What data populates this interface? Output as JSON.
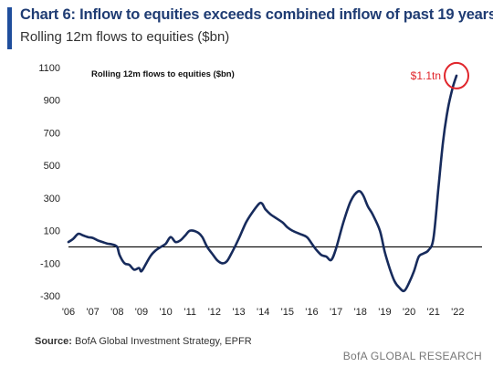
{
  "header": {
    "title": "Chart 6: Inflow to equities exceeds combined inflow of past 19 years",
    "subtitle": "Rolling 12m flows to equities ($bn)"
  },
  "footer": {
    "source_label": "Source:",
    "source_text": "BofA Global Investment Strategy, EPFR",
    "brand": "BofA GLOBAL RESEARCH"
  },
  "colors": {
    "line": "#172b5c",
    "accent": "#1f4e9c",
    "annotation": "#e0252b"
  },
  "chart_data": {
    "type": "line",
    "title": "Rolling 12m flows to equities ($bn)",
    "xlabel": "",
    "ylabel": "",
    "xlim": [
      2006.0,
      2023.0
    ],
    "ylim": [
      -300,
      1100
    ],
    "x_ticks": [
      "'06",
      "'07",
      "'08",
      "'09",
      "'10",
      "'11",
      "'12",
      "'13",
      "'14",
      "'15",
      "'16",
      "'17",
      "'18",
      "'19",
      "'20",
      "'21",
      "'22"
    ],
    "y_ticks": [
      1100,
      900,
      700,
      500,
      300,
      100,
      -100,
      -300
    ],
    "zero_line": 0,
    "grid": false,
    "annotation": {
      "text": "$1.1tn",
      "x": 2021.95,
      "y": 1050
    },
    "series": [
      {
        "values": [
          [
            2006.0,
            30
          ],
          [
            2006.2,
            50
          ],
          [
            2006.4,
            80
          ],
          [
            2006.6,
            70
          ],
          [
            2006.8,
            60
          ],
          [
            2007.0,
            55
          ],
          [
            2007.2,
            40
          ],
          [
            2007.4,
            30
          ],
          [
            2007.6,
            20
          ],
          [
            2007.8,
            15
          ],
          [
            2008.0,
            0
          ],
          [
            2008.1,
            -50
          ],
          [
            2008.3,
            -100
          ],
          [
            2008.5,
            -110
          ],
          [
            2008.7,
            -140
          ],
          [
            2008.9,
            -130
          ],
          [
            2009.0,
            -150
          ],
          [
            2009.2,
            -100
          ],
          [
            2009.4,
            -50
          ],
          [
            2009.6,
            -20
          ],
          [
            2009.8,
            0
          ],
          [
            2010.0,
            20
          ],
          [
            2010.2,
            60
          ],
          [
            2010.4,
            30
          ],
          [
            2010.6,
            40
          ],
          [
            2010.8,
            70
          ],
          [
            2011.0,
            100
          ],
          [
            2011.3,
            90
          ],
          [
            2011.5,
            60
          ],
          [
            2011.7,
            0
          ],
          [
            2011.9,
            -40
          ],
          [
            2012.1,
            -80
          ],
          [
            2012.3,
            -100
          ],
          [
            2012.5,
            -90
          ],
          [
            2012.7,
            -40
          ],
          [
            2013.0,
            50
          ],
          [
            2013.3,
            150
          ],
          [
            2013.6,
            220
          ],
          [
            2013.9,
            270
          ],
          [
            2014.1,
            230
          ],
          [
            2014.3,
            200
          ],
          [
            2014.5,
            180
          ],
          [
            2014.8,
            150
          ],
          [
            2015.0,
            120
          ],
          [
            2015.2,
            100
          ],
          [
            2015.5,
            80
          ],
          [
            2015.8,
            60
          ],
          [
            2016.0,
            20
          ],
          [
            2016.2,
            -20
          ],
          [
            2016.4,
            -50
          ],
          [
            2016.6,
            -60
          ],
          [
            2016.8,
            -80
          ],
          [
            2017.0,
            -10
          ],
          [
            2017.3,
            150
          ],
          [
            2017.6,
            280
          ],
          [
            2017.9,
            340
          ],
          [
            2018.1,
            320
          ],
          [
            2018.3,
            250
          ],
          [
            2018.5,
            200
          ],
          [
            2018.8,
            100
          ],
          [
            2019.0,
            -30
          ],
          [
            2019.2,
            -130
          ],
          [
            2019.4,
            -210
          ],
          [
            2019.6,
            -250
          ],
          [
            2019.8,
            -270
          ],
          [
            2020.0,
            -220
          ],
          [
            2020.2,
            -150
          ],
          [
            2020.4,
            -60
          ],
          [
            2020.6,
            -40
          ],
          [
            2020.8,
            -20
          ],
          [
            2021.0,
            50
          ],
          [
            2021.2,
            350
          ],
          [
            2021.4,
            650
          ],
          [
            2021.6,
            850
          ],
          [
            2021.8,
            980
          ],
          [
            2021.95,
            1050
          ]
        ]
      }
    ]
  }
}
